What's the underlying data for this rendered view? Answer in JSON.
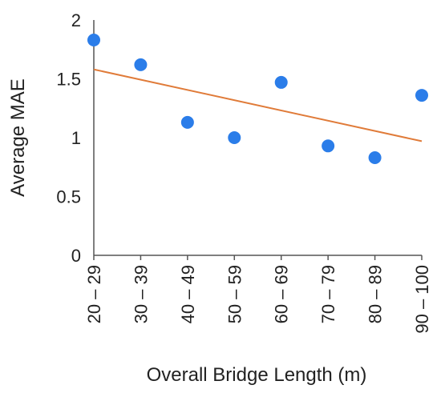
{
  "chart_data": {
    "type": "scatter",
    "xlabel": "Overall Bridge Length (m)",
    "ylabel": "Average MAE",
    "categories": [
      "20 – 29",
      "30 – 39",
      "40 – 49",
      "50 – 59",
      "60 – 69",
      "70 – 79",
      "80 – 89",
      "90 – 100"
    ],
    "series": [
      {
        "values": [
          1.83,
          1.62,
          1.13,
          1.0,
          1.47,
          0.93,
          0.83,
          1.36
        ],
        "color": "#2b7de9",
        "marker": "circle"
      }
    ],
    "trendline": {
      "type": "linear",
      "start": 1.58,
      "end": 0.97,
      "color": "#e07b39"
    },
    "yticks": [
      "0",
      "0.5",
      "1",
      "1.5",
      "2"
    ],
    "ylim": [
      0,
      2
    ],
    "grid": false,
    "legend": "none"
  }
}
